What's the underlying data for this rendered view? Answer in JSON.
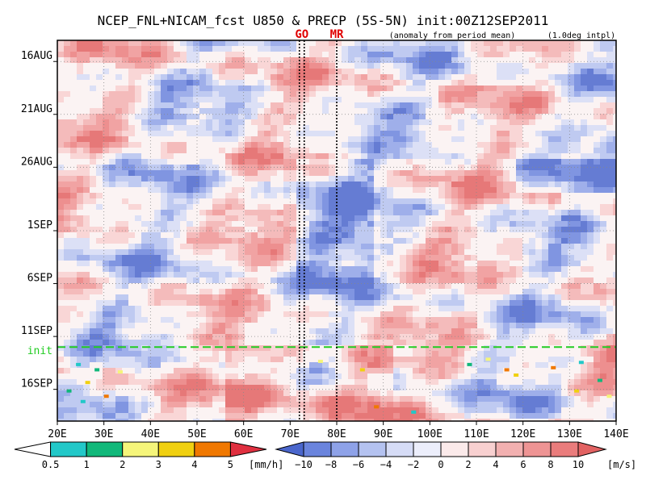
{
  "chart_data": {
    "type": "heatmap",
    "title": "NCEP_FNL+NICAM_fcst U850 & PRECP (5S-5N) init:00Z12SEP2011",
    "subtitle": "(anomaly from period mean)",
    "subtitle2": "(1.0deg intpl)",
    "x_ticks": [
      "20E",
      "30E",
      "40E",
      "50E",
      "60E",
      "70E",
      "80E",
      "90E",
      "100E",
      "110E",
      "120E",
      "130E",
      "140E"
    ],
    "x_range_deg": [
      20,
      140
    ],
    "y_ticks": [
      "16AUG",
      "21AUG",
      "26AUG",
      "1SEP",
      "6SEP",
      "11SEP",
      "16SEP"
    ],
    "y_tick_days": [
      2,
      7,
      12,
      18,
      23,
      28,
      33
    ],
    "y_range_days": [
      0,
      36
    ],
    "init_label": "init",
    "init_day": 29,
    "markers": [
      {
        "label": "GO",
        "lon": 72.5,
        "style": "double-dotted",
        "color": "#e00000"
      },
      {
        "label": "MR",
        "lon": 80,
        "style": "dotted",
        "color": "#e00000"
      }
    ],
    "precip_colorbar": {
      "labels": [
        "0.5",
        "1",
        "2",
        "3",
        "4",
        "5"
      ],
      "unit": "[mm/h]",
      "colors": [
        "#ffffff",
        "#22c8c8",
        "#11b87a",
        "#f5f57a",
        "#f0d010",
        "#f07800",
        "#e03040"
      ]
    },
    "u850_colorbar": {
      "labels": [
        "−10",
        "−8",
        "−6",
        "−4",
        "−2",
        "0",
        "2",
        "4",
        "6",
        "8",
        "10"
      ],
      "unit": "[m/s]",
      "colors": [
        "#4a66cc",
        "#6a84dd",
        "#8ea2e8",
        "#b4c2f0",
        "#d6dcf6",
        "#eceefb",
        "#fbeaea",
        "#f8d0d0",
        "#f2b0b0",
        "#ee9494",
        "#ea7c7c",
        "#e26262"
      ]
    }
  }
}
